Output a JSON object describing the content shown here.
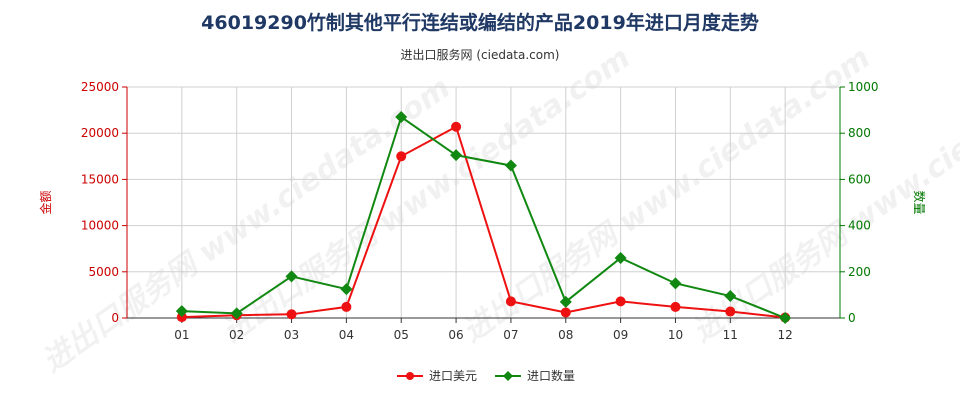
{
  "title": "46019290竹制其他平行连结或编结的产品2019年进口月度走势",
  "subtitle": "进出口服务网 (ciedata.com)",
  "watermark": "进出口服务网 www.ciedata.com",
  "chart_data": {
    "type": "line",
    "categories": [
      "01",
      "02",
      "03",
      "04",
      "05",
      "06",
      "07",
      "08",
      "09",
      "10",
      "11",
      "12"
    ],
    "y_left": {
      "label": "金额",
      "ylim": [
        0,
        25000
      ],
      "ticks": [
        0,
        5000,
        10000,
        15000,
        20000,
        25000
      ],
      "color": "#cc0000"
    },
    "y_right": {
      "label": "数量",
      "ylim": [
        0,
        1000
      ],
      "ticks": [
        0,
        200,
        400,
        600,
        800,
        1000
      ],
      "color": "#007700"
    },
    "series": [
      {
        "name": "进口美元",
        "axis": "left",
        "color": "#ee1111",
        "values": [
          100,
          300,
          400,
          1200,
          17500,
          20700,
          1800,
          600,
          1800,
          1200,
          700,
          50
        ]
      },
      {
        "name": "进口数量",
        "axis": "right",
        "color": "#118811",
        "values": [
          30,
          20,
          180,
          125,
          870,
          705,
          660,
          70,
          260,
          150,
          95,
          0
        ]
      }
    ],
    "grid": true,
    "legend_position": "bottom"
  }
}
